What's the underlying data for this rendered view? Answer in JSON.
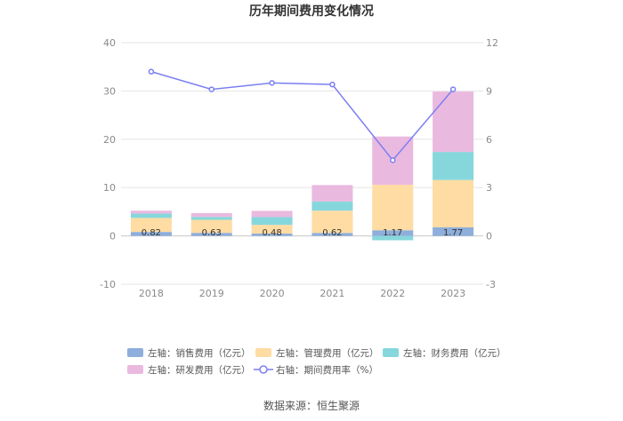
{
  "chart_data": {
    "type": "bar",
    "title": "历年期间费用变化情况",
    "categories": [
      "2018",
      "2019",
      "2020",
      "2021",
      "2022",
      "2023"
    ],
    "stacked": true,
    "y_left": {
      "min": -10,
      "max": 40,
      "ticks": [
        "-10",
        "0",
        "10",
        "20",
        "30",
        "40"
      ]
    },
    "y_right": {
      "min": -3,
      "max": 12,
      "ticks": [
        "-3",
        "0",
        "3",
        "6",
        "9",
        "12"
      ]
    },
    "grid": true,
    "legend_position": "bottom",
    "series": [
      {
        "name": "左轴：销售费用（亿元）",
        "axis": "left",
        "kind": "bar",
        "color": "#8EAEDB",
        "values": [
          0.82,
          0.63,
          0.48,
          0.62,
          1.17,
          1.77
        ],
        "labels": [
          "0.82",
          "0.63",
          "0.48",
          "0.62",
          "1.17",
          "1.77"
        ]
      },
      {
        "name": "左轴：管理费用（亿元）",
        "axis": "left",
        "kind": "bar",
        "color": "#FFDCA3",
        "values": [
          2.9,
          2.7,
          1.8,
          4.6,
          9.4,
          9.8
        ]
      },
      {
        "name": "左轴：财务费用（亿元）",
        "axis": "left",
        "kind": "bar",
        "color": "#86D7DC",
        "values": [
          0.9,
          0.6,
          1.6,
          1.9,
          -0.9,
          5.8
        ]
      },
      {
        "name": "左轴：研发费用（亿元）",
        "axis": "left",
        "kind": "bar",
        "color": "#EAB9DF",
        "values": [
          0.6,
          0.8,
          1.3,
          3.4,
          10.0,
          12.5
        ]
      },
      {
        "name": "右轴：期间费用率（%）",
        "axis": "right",
        "kind": "line",
        "color": "#7B7FF2",
        "values": [
          10.2,
          9.1,
          9.5,
          9.4,
          4.7,
          9.1
        ]
      }
    ]
  },
  "source": "数据来源：恒生聚源"
}
